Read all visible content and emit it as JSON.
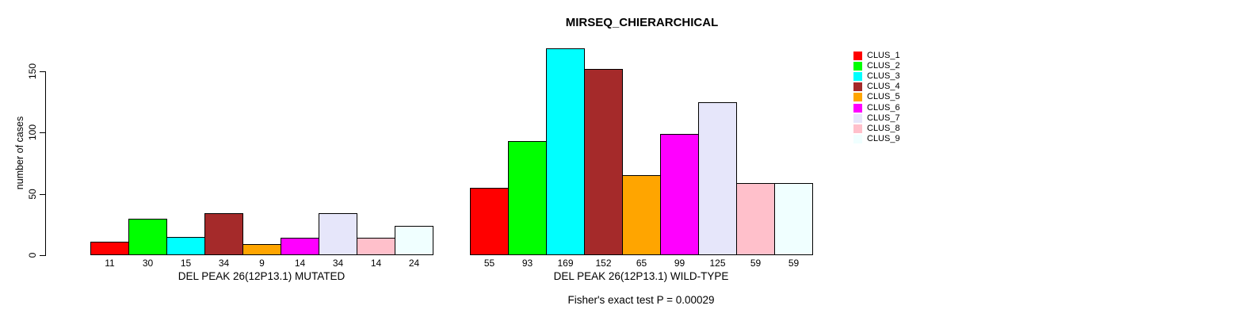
{
  "chart_data": {
    "type": "bar",
    "title": "MIRSEQ_CHIERARCHICAL",
    "ylabel": "number of cases",
    "ylim": [
      0,
      169
    ],
    "yticks": [
      0,
      50,
      100,
      150
    ],
    "grid": false,
    "legend_position": "right",
    "categories": [
      "DEL PEAK 26(12P13.1) MUTATED",
      "DEL PEAK 26(12P13.1) WILD-TYPE"
    ],
    "category_keys": [
      "mutated",
      "wild-type"
    ],
    "series": [
      {
        "name": "CLUS_1",
        "color": "#FF0000",
        "values": [
          11,
          55
        ]
      },
      {
        "name": "CLUS_2",
        "color": "#00FF00",
        "values": [
          30,
          93
        ]
      },
      {
        "name": "CLUS_3",
        "color": "#00FFFF",
        "values": [
          15,
          169
        ]
      },
      {
        "name": "CLUS_4",
        "color": "#A52A2A",
        "values": [
          34,
          152
        ]
      },
      {
        "name": "CLUS_5",
        "color": "#FFA500",
        "values": [
          9,
          65
        ]
      },
      {
        "name": "CLUS_6",
        "color": "#FF00FF",
        "values": [
          14,
          99
        ]
      },
      {
        "name": "CLUS_7",
        "color": "#E6E6FA",
        "values": [
          34,
          125
        ]
      },
      {
        "name": "CLUS_8",
        "color": "#FFC0CB",
        "values": [
          14,
          59
        ]
      },
      {
        "name": "CLUS_9",
        "color": "#F0FFFF",
        "values": [
          24,
          59
        ]
      }
    ],
    "bar_value_labels": true,
    "annotation": "Fisher's exact test P = 0.00029",
    "axis_color": "#000000",
    "bar_border_color": "#000000"
  }
}
